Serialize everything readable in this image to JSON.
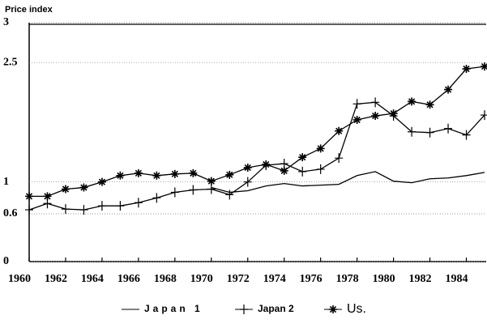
{
  "chart_data": {
    "type": "line",
    "y_label": "Price index",
    "x": [
      1960,
      1961,
      1962,
      1963,
      1964,
      1965,
      1966,
      1967,
      1968,
      1969,
      1970,
      1971,
      1972,
      1973,
      1974,
      1975,
      1976,
      1977,
      1978,
      1979,
      1980,
      1981,
      1982,
      1983,
      1984,
      1985
    ],
    "series": [
      {
        "name": "Japan 1",
        "color": "#000000",
        "marker": "none",
        "values": [
          null,
          null,
          null,
          null,
          null,
          null,
          null,
          null,
          null,
          null,
          0.93,
          0.87,
          0.89,
          0.95,
          0.98,
          0.95,
          0.96,
          0.97,
          1.08,
          1.13,
          1.01,
          0.99,
          1.04,
          1.05,
          1.08,
          1.12
        ]
      },
      {
        "name": "Japan 2",
        "color": "#000000",
        "marker": "plus",
        "values": [
          0.65,
          0.73,
          0.66,
          0.65,
          0.7,
          0.7,
          0.74,
          0.8,
          0.87,
          0.9,
          0.91,
          0.84,
          1.0,
          1.21,
          1.23,
          1.13,
          1.16,
          1.3,
          1.98,
          2.0,
          1.83,
          1.63,
          1.62,
          1.67,
          1.59,
          1.84
        ]
      },
      {
        "name": "Us.",
        "color": "#000000",
        "marker": "star",
        "values": [
          0.82,
          0.82,
          0.91,
          0.93,
          1.0,
          1.08,
          1.11,
          1.08,
          1.1,
          1.11,
          1.01,
          1.09,
          1.18,
          1.22,
          1.14,
          1.31,
          1.42,
          1.64,
          1.78,
          1.83,
          1.86,
          2.01,
          1.97,
          2.16,
          2.42,
          2.45
        ]
      }
    ],
    "xlim": [
      1960,
      1985
    ],
    "xticks": [
      1960,
      1962,
      1964,
      1966,
      1968,
      1970,
      1972,
      1974,
      1976,
      1978,
      1980,
      1982,
      1984
    ],
    "ylim": [
      0,
      3
    ],
    "yticks": [
      0,
      0.6,
      1,
      2.5,
      3
    ],
    "grid": true,
    "legend": "bottom"
  }
}
